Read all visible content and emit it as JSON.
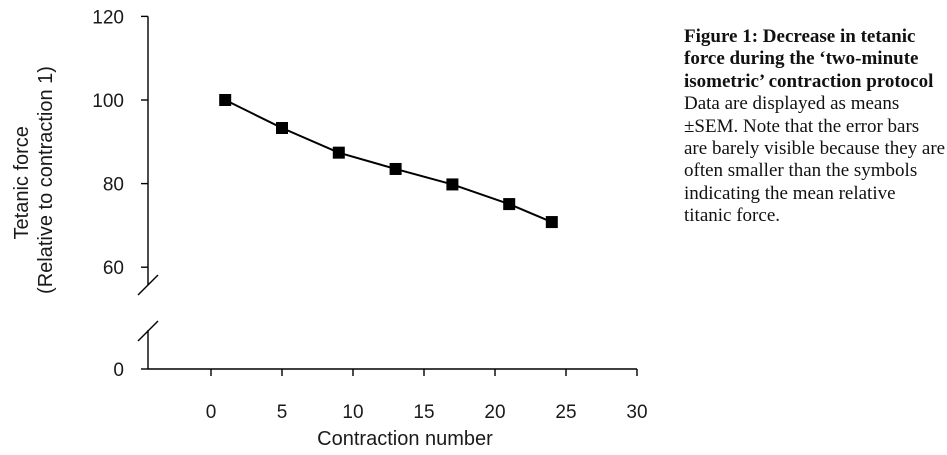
{
  "chart_data": {
    "type": "line",
    "xlabel": "Contraction number",
    "ylabel_lines": [
      "Tetanic force",
      "(Relative to contraction 1)"
    ],
    "x_ticks": [
      0,
      5,
      10,
      15,
      20,
      25,
      30
    ],
    "y_ticks": [
      0,
      60,
      80,
      100,
      120
    ],
    "xlim": [
      -4,
      30
    ],
    "ylim": [
      50,
      120
    ],
    "y_axis_break": true,
    "grid": false,
    "marker": "square",
    "color": "#000000",
    "series": [
      {
        "x": [
          1,
          5,
          9,
          13,
          17,
          21,
          24
        ],
        "y": [
          100,
          93.3,
          87.4,
          83.5,
          79.8,
          75.1,
          70.8
        ]
      }
    ]
  },
  "caption": {
    "title": "Figure 1: Decrease in tetanic force during the ‘two-minute isometric’ contraction protocol",
    "body": "Data are displayed as means ±SEM. Note that the error bars are barely visible because they are often smaller than the symbols indicating the mean relative titanic force."
  }
}
